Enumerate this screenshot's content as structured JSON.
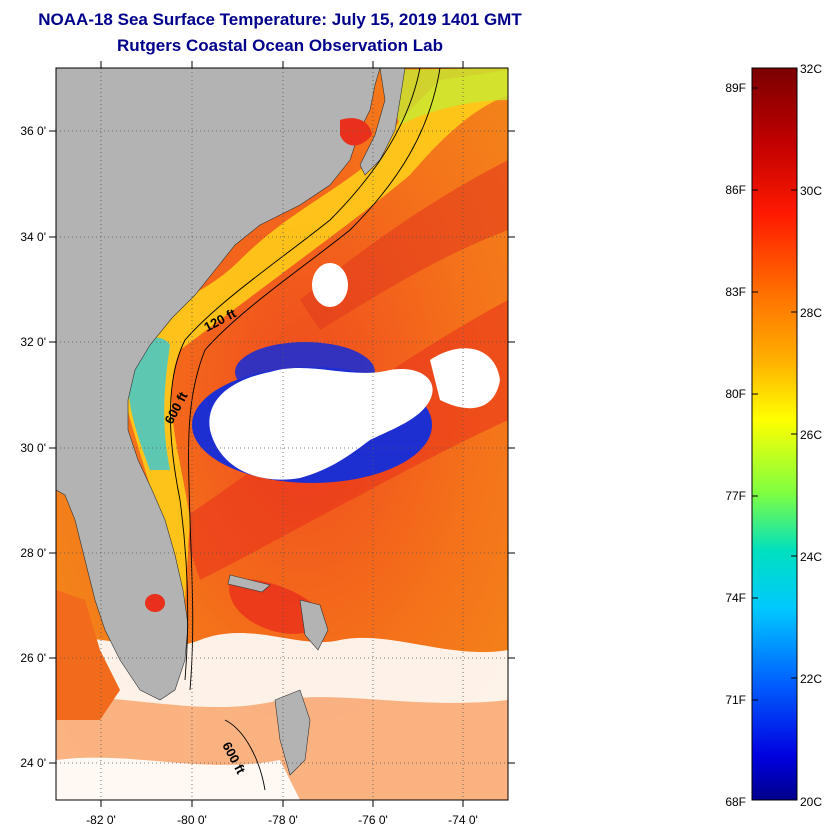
{
  "title": {
    "line1": "NOAA-18 Sea Surface Temperature:  July 15, 2019 1401 GMT",
    "line2": "Rutgers Coastal Ocean Observation Lab"
  },
  "map": {
    "lat_ticks": [
      "36 0'",
      "34 0'",
      "32 0'",
      "30 0'",
      "28 0'",
      "26 0'",
      "24 0'"
    ],
    "lon_ticks": [
      "-82 0'",
      "-80 0'",
      "-78 0'",
      "-76 0'",
      "-74 0'"
    ],
    "isobath_labels": [
      "120 ft",
      "600 ft",
      "600 ft"
    ],
    "colors": {
      "land": "#b3b3b3",
      "cloud": "#ffffff",
      "warm_water": "#f26a1b",
      "hot_water": "#e8301c",
      "cool_water": "#ffe000",
      "cold_water": "#1e2fd1"
    }
  },
  "colorbar": {
    "fahrenheit_labels": [
      "89F",
      "86F",
      "83F",
      "80F",
      "77F",
      "74F",
      "71F",
      "68F"
    ],
    "celsius_labels": [
      "32C",
      "30C",
      "28C",
      "26C",
      "24C",
      "22C",
      "20C"
    ]
  }
}
